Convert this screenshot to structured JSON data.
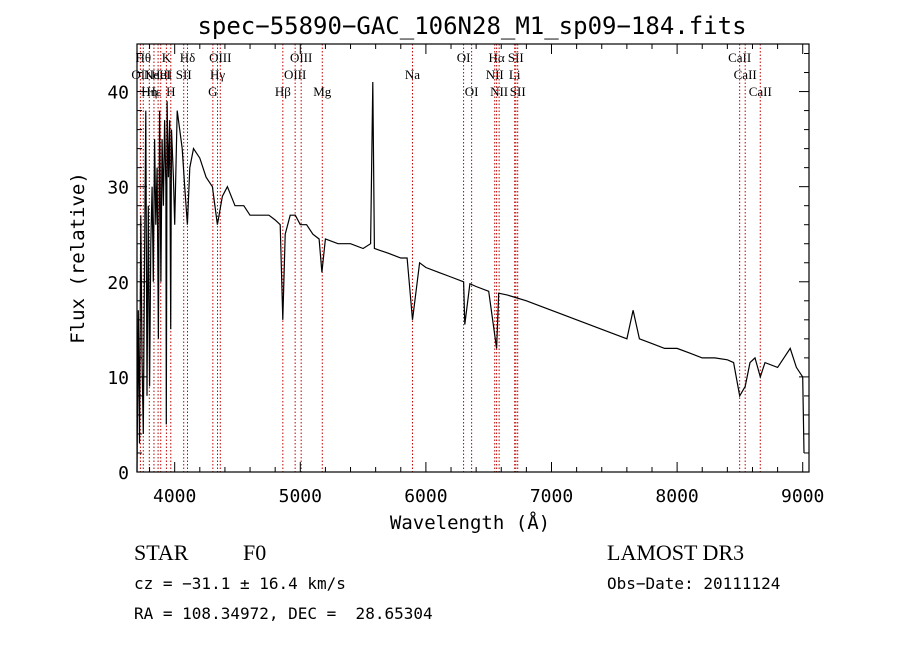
{
  "chart_data": {
    "type": "line",
    "title": "spec−55890−GAC_106N28_M1_sp09−184.fits",
    "xlabel": "Wavelength (Å)",
    "ylabel": "Flux (relative)",
    "xlim": [
      3700,
      9050
    ],
    "ylim": [
      0,
      45
    ],
    "xticks": [
      4000,
      5000,
      6000,
      7000,
      8000,
      9000
    ],
    "xtick_labels": [
      "4000",
      "5000",
      "6000",
      "7000",
      "8000",
      "9000"
    ],
    "yticks": [
      0,
      10,
      20,
      30,
      40
    ],
    "ytick_labels": [
      "0",
      "10",
      "20",
      "30",
      "40"
    ],
    "series": [
      {
        "name": "flux",
        "x": [
          3700,
          3710,
          3720,
          3730,
          3740,
          3750,
          3760,
          3770,
          3780,
          3790,
          3800,
          3810,
          3820,
          3830,
          3840,
          3850,
          3860,
          3870,
          3880,
          3890,
          3900,
          3910,
          3920,
          3930,
          3933,
          3940,
          3950,
          3960,
          3968,
          3975,
          3990,
          4000,
          4020,
          4040,
          4060,
          4080,
          4101,
          4120,
          4150,
          4200,
          4250,
          4300,
          4340,
          4380,
          4420,
          4480,
          4550,
          4600,
          4650,
          4700,
          4750,
          4800,
          4840,
          4861,
          4880,
          4920,
          4960,
          5000,
          5050,
          5100,
          5150,
          5172,
          5200,
          5300,
          5400,
          5500,
          5560,
          5577,
          5590,
          5700,
          5800,
          5850,
          5893,
          5950,
          6000,
          6100,
          6200,
          6300,
          6310,
          6350,
          6400,
          6500,
          6563,
          6580,
          6650,
          6700,
          6800,
          6900,
          7000,
          7100,
          7200,
          7300,
          7400,
          7500,
          7600,
          7650,
          7700,
          7800,
          7900,
          8000,
          8100,
          8200,
          8300,
          8400,
          8450,
          8498,
          8542,
          8580,
          8620,
          8662,
          8700,
          8800,
          8850,
          8900,
          8950,
          9000,
          9010
        ],
        "y": [
          0,
          17,
          3,
          27,
          12,
          4,
          22,
          38,
          8,
          28,
          9,
          24,
          30,
          20,
          35,
          26,
          32,
          14,
          38,
          20,
          35,
          28,
          37,
          30,
          5,
          39,
          31,
          37,
          15,
          36,
          31,
          26,
          38,
          36,
          34,
          30,
          26,
          32,
          34,
          33,
          31,
          30,
          26,
          29,
          30,
          28,
          28,
          27,
          27,
          27,
          27,
          26.5,
          26,
          16,
          25,
          27,
          27,
          26,
          26,
          25,
          24.5,
          21,
          24.5,
          24,
          24,
          23.5,
          24,
          41,
          23.5,
          23,
          22.5,
          22.5,
          16,
          22,
          21.5,
          21,
          20.5,
          20,
          15.5,
          19.8,
          19.5,
          19,
          13,
          18.8,
          18.6,
          18.4,
          18,
          17.5,
          17,
          16.5,
          16,
          15.5,
          15,
          14.5,
          14,
          17,
          14,
          13.5,
          13,
          13,
          12.5,
          12,
          12,
          11.8,
          11.5,
          8,
          9,
          11.5,
          12,
          10,
          11.5,
          11,
          12,
          13,
          11,
          10,
          2
        ]
      }
    ],
    "line_markers": [
      {
        "wavelength": 3727,
        "label": "OII",
        "row": 2
      },
      {
        "wavelength": 3750,
        "label": "Hθ",
        "row": 1
      },
      {
        "wavelength": 3798,
        "label": "Hη",
        "row": 3
      },
      {
        "wavelength": 3835,
        "label": "Hε",
        "row": 3
      },
      {
        "wavelength": 3868,
        "label": "NeIII",
        "row": 2
      },
      {
        "wavelength": 3889,
        "label": "HeI",
        "row": 2
      },
      {
        "wavelength": 3934,
        "label": "K",
        "row": 1
      },
      {
        "wavelength": 3969,
        "label": "H",
        "row": 3
      },
      {
        "wavelength": 4072,
        "label": "SII",
        "row": 2
      },
      {
        "wavelength": 4102,
        "label": "Hδ",
        "row": 1
      },
      {
        "wavelength": 4304,
        "label": "G",
        "row": 3
      },
      {
        "wavelength": 4341,
        "label": "Hγ",
        "row": 2
      },
      {
        "wavelength": 4363,
        "label": "OIII",
        "row": 1
      },
      {
        "wavelength": 4861,
        "label": "Hβ",
        "row": 3
      },
      {
        "wavelength": 4959,
        "label": "OIII",
        "row": 2
      },
      {
        "wavelength": 5007,
        "label": "OIII",
        "row": 1
      },
      {
        "wavelength": 5175,
        "label": "Mg",
        "row": 3
      },
      {
        "wavelength": 5893,
        "label": "Na",
        "row": 2
      },
      {
        "wavelength": 6300,
        "label": "OI",
        "row": 1
      },
      {
        "wavelength": 6364,
        "label": "OI",
        "row": 3
      },
      {
        "wavelength": 6548,
        "label": "NII",
        "row": 2
      },
      {
        "wavelength": 6563,
        "label": "Hα",
        "row": 1
      },
      {
        "wavelength": 6583,
        "label": "NII",
        "row": 3
      },
      {
        "wavelength": 6707,
        "label": "Li",
        "row": 2
      },
      {
        "wavelength": 6716,
        "label": "SII",
        "row": 1
      },
      {
        "wavelength": 6731,
        "label": "SII",
        "row": 3
      },
      {
        "wavelength": 8498,
        "label": "CaII",
        "row": 1
      },
      {
        "wavelength": 8542,
        "label": "CaII",
        "row": 2
      },
      {
        "wavelength": 8662,
        "label": "CaII",
        "row": 3
      }
    ]
  },
  "info": {
    "class_label": "STAR",
    "subclass_label": "F0",
    "survey": "LAMOST DR3",
    "cz": "cz = −31.1 ± 16.4 km/s",
    "obs_date": "Obs−Date: 20111124",
    "coords": "RA = 108.34972, DEC =  28.65304"
  }
}
